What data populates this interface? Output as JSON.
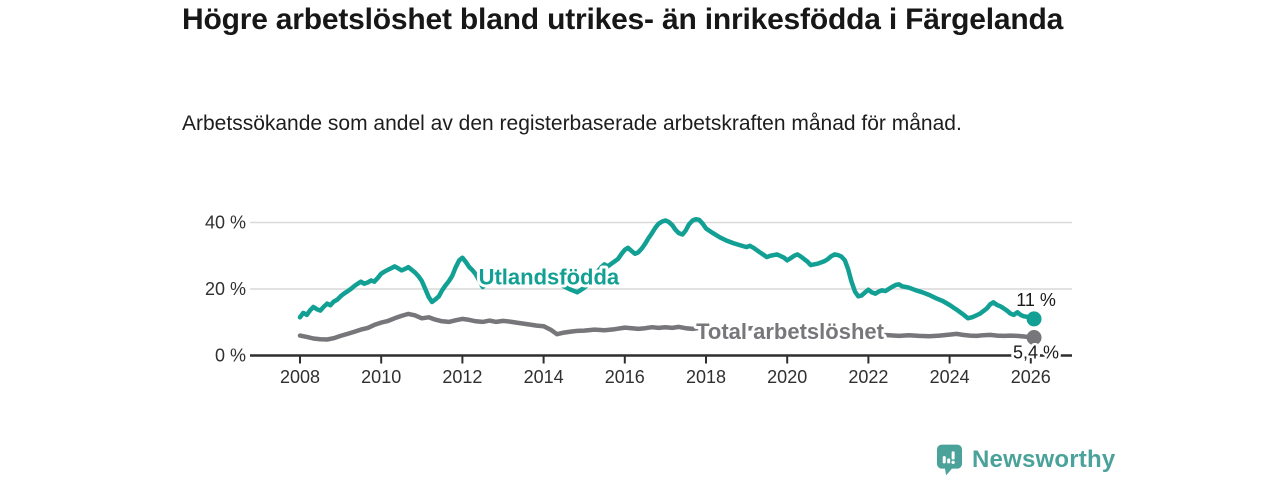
{
  "branding": {
    "logo_text": "Newsworthy",
    "logo_icon": "newsworthy-logo-icon",
    "logo_color": "#4BA29B"
  },
  "chart_data": {
    "type": "line",
    "title": "Högre arbetslöshet bland utrikes- än inrikesfödda i Färgelanda",
    "subtitle": "Arbetssökande som andel av den registerbaserade arbetskraften månad för månad.",
    "unit": "%",
    "grid": "horizontal",
    "legend_position": "inline-labels",
    "x_axis": {
      "ticks": [
        2008,
        2010,
        2012,
        2014,
        2016,
        2018,
        2020,
        2022,
        2024,
        2026
      ],
      "range": [
        2006.7,
        2027.0
      ]
    },
    "y_axis": {
      "ticks": [
        {
          "value": 0,
          "label": "0 %"
        },
        {
          "value": 20,
          "label": "20 %"
        },
        {
          "value": 40,
          "label": "40 %"
        }
      ],
      "range": [
        0,
        44
      ]
    },
    "colors": {
      "axis": "#2E2E2E",
      "gridline": "#D9D9D9",
      "tick_text": "#303030",
      "end_label_text": "#1A1A1A"
    },
    "series": [
      {
        "name": "Utlandsfödda",
        "color": "#13A094",
        "inline_label": {
          "year": 2014.13,
          "value": 21.4
        },
        "end_label": "11 %",
        "end_value": 11,
        "points": [
          [
            2008.0,
            11.5
          ],
          [
            2008.08,
            12.8
          ],
          [
            2008.17,
            12.2
          ],
          [
            2008.25,
            13.6
          ],
          [
            2008.33,
            14.6
          ],
          [
            2008.42,
            13.9
          ],
          [
            2008.5,
            13.5
          ],
          [
            2008.58,
            14.6
          ],
          [
            2008.67,
            15.6
          ],
          [
            2008.75,
            15.1
          ],
          [
            2008.83,
            16.2
          ],
          [
            2008.92,
            16.8
          ],
          [
            2009.0,
            17.8
          ],
          [
            2009.08,
            18.6
          ],
          [
            2009.17,
            19.3
          ],
          [
            2009.25,
            20.0
          ],
          [
            2009.33,
            20.8
          ],
          [
            2009.42,
            21.6
          ],
          [
            2009.5,
            22.2
          ],
          [
            2009.58,
            21.6
          ],
          [
            2009.67,
            22.0
          ],
          [
            2009.75,
            22.6
          ],
          [
            2009.83,
            22.2
          ],
          [
            2009.92,
            23.4
          ],
          [
            2010.0,
            24.6
          ],
          [
            2010.08,
            25.2
          ],
          [
            2010.17,
            25.8
          ],
          [
            2010.25,
            26.3
          ],
          [
            2010.33,
            26.8
          ],
          [
            2010.42,
            26.2
          ],
          [
            2010.5,
            25.6
          ],
          [
            2010.58,
            26.0
          ],
          [
            2010.67,
            26.6
          ],
          [
            2010.75,
            25.8
          ],
          [
            2010.83,
            25.0
          ],
          [
            2010.92,
            23.8
          ],
          [
            2011.0,
            22.4
          ],
          [
            2011.08,
            20.2
          ],
          [
            2011.17,
            17.6
          ],
          [
            2011.25,
            16.1
          ],
          [
            2011.33,
            16.8
          ],
          [
            2011.42,
            17.8
          ],
          [
            2011.5,
            19.6
          ],
          [
            2011.58,
            21.0
          ],
          [
            2011.67,
            22.4
          ],
          [
            2011.75,
            24.0
          ],
          [
            2011.83,
            26.4
          ],
          [
            2011.92,
            28.6
          ],
          [
            2012.0,
            29.4
          ],
          [
            2012.08,
            28.2
          ],
          [
            2012.17,
            26.6
          ],
          [
            2012.25,
            25.6
          ],
          [
            2012.33,
            24.4
          ],
          [
            2012.42,
            22.4
          ],
          [
            2012.5,
            20.6
          ],
          [
            2012.58,
            21.4
          ],
          [
            2012.67,
            22.2
          ],
          [
            2012.75,
            22.8
          ],
          [
            2012.83,
            23.0
          ],
          [
            2012.92,
            23.4
          ],
          [
            2013.0,
            23.6
          ],
          [
            2013.17,
            24.0
          ],
          [
            2013.33,
            23.6
          ],
          [
            2013.5,
            24.2
          ],
          [
            2013.67,
            24.4
          ],
          [
            2013.83,
            23.8
          ],
          [
            2014.0,
            23.2
          ],
          [
            2014.17,
            22.6
          ],
          [
            2014.33,
            21.8
          ],
          [
            2014.5,
            20.8
          ],
          [
            2014.67,
            19.8
          ],
          [
            2014.83,
            19.0
          ],
          [
            2015.0,
            20.4
          ],
          [
            2015.17,
            22.4
          ],
          [
            2015.33,
            25.2
          ],
          [
            2015.42,
            26.6
          ],
          [
            2015.5,
            27.4
          ],
          [
            2015.58,
            26.8
          ],
          [
            2015.67,
            27.6
          ],
          [
            2015.83,
            29.0
          ],
          [
            2015.92,
            30.6
          ],
          [
            2016.0,
            31.8
          ],
          [
            2016.08,
            32.4
          ],
          [
            2016.17,
            31.4
          ],
          [
            2016.25,
            30.6
          ],
          [
            2016.33,
            31.0
          ],
          [
            2016.42,
            32.2
          ],
          [
            2016.5,
            33.6
          ],
          [
            2016.58,
            35.2
          ],
          [
            2016.67,
            36.8
          ],
          [
            2016.75,
            38.4
          ],
          [
            2016.83,
            39.6
          ],
          [
            2016.92,
            40.3
          ],
          [
            2017.0,
            40.6
          ],
          [
            2017.08,
            40.2
          ],
          [
            2017.17,
            39.2
          ],
          [
            2017.25,
            37.8
          ],
          [
            2017.33,
            36.8
          ],
          [
            2017.42,
            36.4
          ],
          [
            2017.5,
            37.6
          ],
          [
            2017.58,
            39.4
          ],
          [
            2017.67,
            40.6
          ],
          [
            2017.75,
            41.0
          ],
          [
            2017.83,
            40.8
          ],
          [
            2017.92,
            39.6
          ],
          [
            2018.0,
            38.2
          ],
          [
            2018.17,
            36.8
          ],
          [
            2018.33,
            35.6
          ],
          [
            2018.5,
            34.6
          ],
          [
            2018.67,
            33.8
          ],
          [
            2018.83,
            33.2
          ],
          [
            2019.0,
            32.6
          ],
          [
            2019.08,
            33.0
          ],
          [
            2019.17,
            32.4
          ],
          [
            2019.33,
            31.0
          ],
          [
            2019.5,
            29.6
          ],
          [
            2019.58,
            30.0
          ],
          [
            2019.75,
            30.4
          ],
          [
            2019.92,
            29.4
          ],
          [
            2020.0,
            28.6
          ],
          [
            2020.08,
            29.2
          ],
          [
            2020.17,
            30.0
          ],
          [
            2020.25,
            30.4
          ],
          [
            2020.33,
            29.8
          ],
          [
            2020.5,
            28.2
          ],
          [
            2020.58,
            27.2
          ],
          [
            2020.75,
            27.6
          ],
          [
            2020.92,
            28.4
          ],
          [
            2021.0,
            29.0
          ],
          [
            2021.08,
            29.8
          ],
          [
            2021.17,
            30.4
          ],
          [
            2021.25,
            30.2
          ],
          [
            2021.33,
            29.8
          ],
          [
            2021.42,
            28.6
          ],
          [
            2021.5,
            26.0
          ],
          [
            2021.58,
            22.4
          ],
          [
            2021.67,
            19.2
          ],
          [
            2021.75,
            17.8
          ],
          [
            2021.83,
            18.0
          ],
          [
            2021.92,
            19.0
          ],
          [
            2022.0,
            19.8
          ],
          [
            2022.08,
            19.0
          ],
          [
            2022.17,
            18.6
          ],
          [
            2022.25,
            19.2
          ],
          [
            2022.33,
            19.6
          ],
          [
            2022.42,
            19.4
          ],
          [
            2022.5,
            20.0
          ],
          [
            2022.58,
            20.6
          ],
          [
            2022.67,
            21.2
          ],
          [
            2022.75,
            21.4
          ],
          [
            2022.83,
            20.8
          ],
          [
            2022.92,
            20.6
          ],
          [
            2023.0,
            20.4
          ],
          [
            2023.17,
            19.6
          ],
          [
            2023.33,
            19.0
          ],
          [
            2023.5,
            18.2
          ],
          [
            2023.67,
            17.2
          ],
          [
            2023.83,
            16.4
          ],
          [
            2024.0,
            15.2
          ],
          [
            2024.17,
            13.8
          ],
          [
            2024.33,
            12.4
          ],
          [
            2024.45,
            11.2
          ],
          [
            2024.58,
            11.6
          ],
          [
            2024.75,
            12.6
          ],
          [
            2024.92,
            14.2
          ],
          [
            2025.0,
            15.4
          ],
          [
            2025.08,
            16.0
          ],
          [
            2025.17,
            15.2
          ],
          [
            2025.25,
            14.8
          ],
          [
            2025.33,
            14.2
          ],
          [
            2025.42,
            13.4
          ],
          [
            2025.5,
            12.6
          ],
          [
            2025.58,
            12.2
          ],
          [
            2025.67,
            13.0
          ],
          [
            2025.75,
            12.2
          ],
          [
            2025.83,
            11.8
          ],
          [
            2025.92,
            11.6
          ],
          [
            2026.0,
            11.3
          ],
          [
            2026.08,
            11.0
          ]
        ]
      },
      {
        "name": "Total arbetslöshet",
        "color": "#77777B",
        "inline_label": {
          "year": 2020.07,
          "value": 4.9
        },
        "end_label": "5,4 %",
        "end_value": 5.4,
        "points": [
          [
            2008.0,
            6.0
          ],
          [
            2008.17,
            5.6
          ],
          [
            2008.33,
            5.1
          ],
          [
            2008.5,
            4.9
          ],
          [
            2008.67,
            4.8
          ],
          [
            2008.83,
            5.2
          ],
          [
            2009.0,
            5.9
          ],
          [
            2009.17,
            6.5
          ],
          [
            2009.33,
            7.1
          ],
          [
            2009.5,
            7.8
          ],
          [
            2009.67,
            8.3
          ],
          [
            2009.83,
            9.2
          ],
          [
            2010.0,
            9.9
          ],
          [
            2010.17,
            10.4
          ],
          [
            2010.33,
            11.2
          ],
          [
            2010.5,
            11.9
          ],
          [
            2010.67,
            12.5
          ],
          [
            2010.83,
            12.1
          ],
          [
            2011.0,
            11.2
          ],
          [
            2011.17,
            11.5
          ],
          [
            2011.33,
            10.8
          ],
          [
            2011.5,
            10.3
          ],
          [
            2011.67,
            10.1
          ],
          [
            2011.83,
            10.6
          ],
          [
            2012.0,
            11.0
          ],
          [
            2012.17,
            10.7
          ],
          [
            2012.33,
            10.3
          ],
          [
            2012.5,
            10.1
          ],
          [
            2012.67,
            10.5
          ],
          [
            2012.83,
            10.1
          ],
          [
            2013.0,
            10.4
          ],
          [
            2013.17,
            10.2
          ],
          [
            2013.33,
            9.9
          ],
          [
            2013.5,
            9.6
          ],
          [
            2013.67,
            9.3
          ],
          [
            2013.83,
            9.0
          ],
          [
            2014.0,
            8.8
          ],
          [
            2014.17,
            7.8
          ],
          [
            2014.33,
            6.4
          ],
          [
            2014.5,
            6.9
          ],
          [
            2014.67,
            7.2
          ],
          [
            2014.83,
            7.4
          ],
          [
            2015.0,
            7.5
          ],
          [
            2015.25,
            7.8
          ],
          [
            2015.5,
            7.6
          ],
          [
            2015.75,
            7.9
          ],
          [
            2016.0,
            8.4
          ],
          [
            2016.17,
            8.2
          ],
          [
            2016.33,
            8.0
          ],
          [
            2016.5,
            8.2
          ],
          [
            2016.67,
            8.5
          ],
          [
            2016.83,
            8.3
          ],
          [
            2017.0,
            8.5
          ],
          [
            2017.17,
            8.3
          ],
          [
            2017.33,
            8.6
          ],
          [
            2017.5,
            8.2
          ],
          [
            2017.67,
            8.0
          ],
          [
            2017.83,
            8.3
          ],
          [
            2018.0,
            8.5
          ],
          [
            2018.25,
            8.3
          ],
          [
            2018.5,
            8.6
          ],
          [
            2018.75,
            8.4
          ],
          [
            2019.0,
            8.1
          ],
          [
            2019.25,
            8.3
          ],
          [
            2019.5,
            7.9
          ],
          [
            2019.75,
            7.7
          ],
          [
            2020.0,
            7.9
          ],
          [
            2020.25,
            8.3
          ],
          [
            2020.5,
            8.1
          ],
          [
            2020.75,
            7.8
          ],
          [
            2021.0,
            7.7
          ],
          [
            2021.25,
            7.4
          ],
          [
            2021.5,
            7.1
          ],
          [
            2021.75,
            6.9
          ],
          [
            2022.0,
            6.6
          ],
          [
            2022.25,
            6.3
          ],
          [
            2022.5,
            6.1
          ],
          [
            2022.75,
            5.9
          ],
          [
            2023.0,
            6.1
          ],
          [
            2023.25,
            5.9
          ],
          [
            2023.5,
            5.8
          ],
          [
            2023.75,
            6.0
          ],
          [
            2024.0,
            6.3
          ],
          [
            2024.17,
            6.5
          ],
          [
            2024.33,
            6.2
          ],
          [
            2024.5,
            6.0
          ],
          [
            2024.67,
            5.9
          ],
          [
            2024.83,
            6.1
          ],
          [
            2025.0,
            6.2
          ],
          [
            2025.17,
            6.0
          ],
          [
            2025.33,
            5.9
          ],
          [
            2025.5,
            6.0
          ],
          [
            2025.67,
            5.9
          ],
          [
            2025.83,
            5.7
          ],
          [
            2026.0,
            5.5
          ],
          [
            2026.08,
            5.4
          ]
        ]
      }
    ]
  }
}
